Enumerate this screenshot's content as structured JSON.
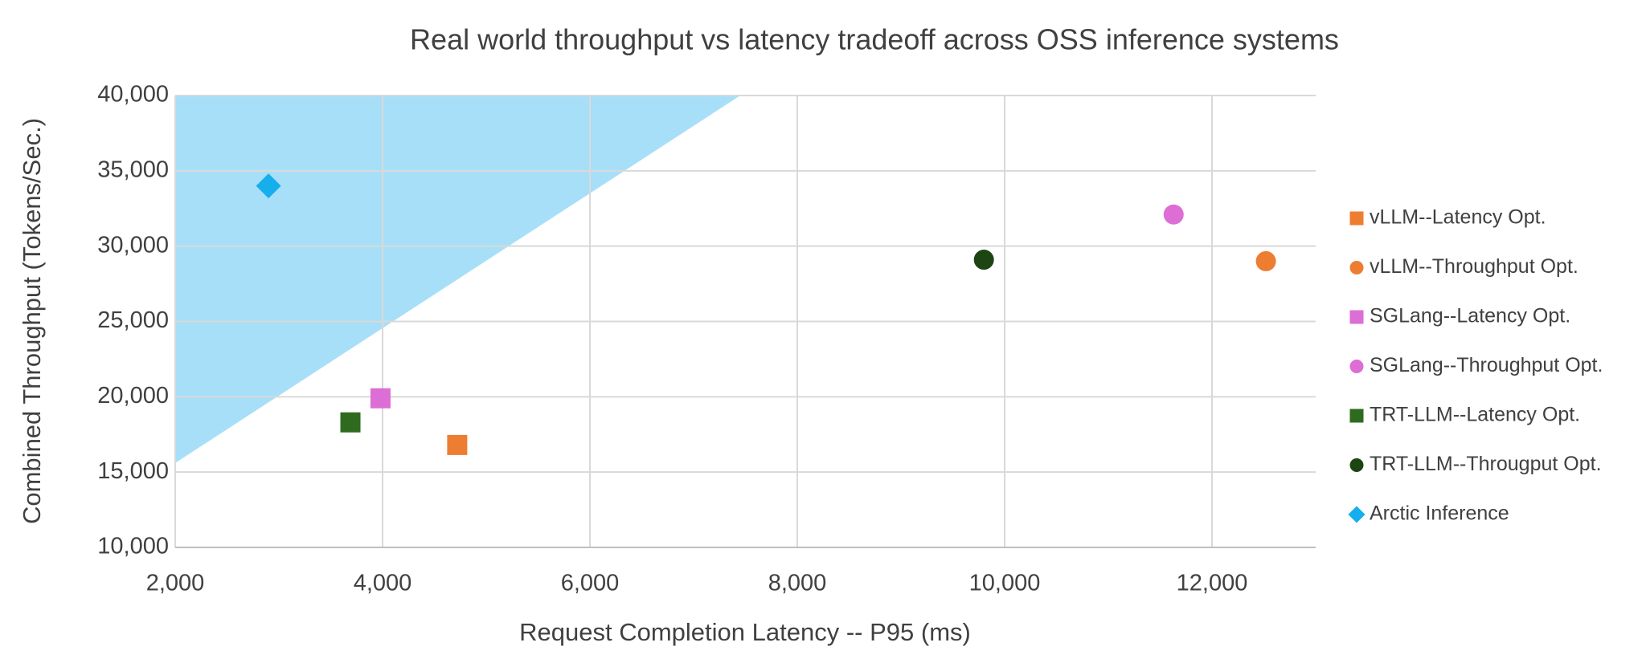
{
  "chart_data": {
    "type": "scatter",
    "title": "Real world throughput vs latency tradeoff across OSS inference systems",
    "x_label": "Request Completion Latency -- P95 (ms)",
    "y_label": "Combined Throughput (Tokens/Sec.)",
    "xlim": [
      2000,
      13000
    ],
    "ylim": [
      10000,
      40000
    ],
    "xticks": [
      {
        "value": 2000,
        "label": "2,000"
      },
      {
        "value": 4000,
        "label": "4,000"
      },
      {
        "value": 6000,
        "label": "6,000"
      },
      {
        "value": 8000,
        "label": "8,000"
      },
      {
        "value": 10000,
        "label": "10,000"
      },
      {
        "value": 12000,
        "label": "12,000"
      }
    ],
    "yticks": [
      {
        "value": 10000,
        "label": "10,000"
      },
      {
        "value": 15000,
        "label": "15,000"
      },
      {
        "value": 20000,
        "label": "20,000"
      },
      {
        "value": 25000,
        "label": "25,000"
      },
      {
        "value": 30000,
        "label": "30,000"
      },
      {
        "value": 35000,
        "label": "35,000"
      },
      {
        "value": 40000,
        "label": "40,000"
      }
    ],
    "grid": true,
    "legend": "right",
    "region": {
      "color": "#a8dff8",
      "x": [
        2000,
        2000,
        7450
      ],
      "y": [
        40000,
        15600,
        40000
      ]
    },
    "series": [
      {
        "name": "vLLM--Latency Opt.",
        "color": "#ed7d31",
        "marker": "square",
        "x": [
          4720
        ],
        "values": [
          16800
        ]
      },
      {
        "name": "vLLM--Throughput Opt.",
        "color": "#ed7d31",
        "marker": "circle",
        "x": [
          12520
        ],
        "values": [
          29000
        ]
      },
      {
        "name": "SGLang--Latency Opt.",
        "color": "#dc6ed6",
        "marker": "square",
        "x": [
          3980
        ],
        "values": [
          19900
        ]
      },
      {
        "name": "SGLang--Throughput Opt.",
        "color": "#dc6ed6",
        "marker": "circle",
        "x": [
          11630
        ],
        "values": [
          32100
        ]
      },
      {
        "name": "TRT-LLM--Latency Opt.",
        "color": "#2f6b1f",
        "marker": "square",
        "x": [
          3690
        ],
        "values": [
          18300
        ]
      },
      {
        "name": "TRT-LLM--Througput Opt.",
        "color": "#1d4514",
        "marker": "circle",
        "x": [
          9800
        ],
        "values": [
          29100
        ]
      },
      {
        "name": "Arctic Inference",
        "color": "#17aeee",
        "marker": "diamond",
        "x": [
          2900
        ],
        "values": [
          34000
        ]
      }
    ]
  }
}
